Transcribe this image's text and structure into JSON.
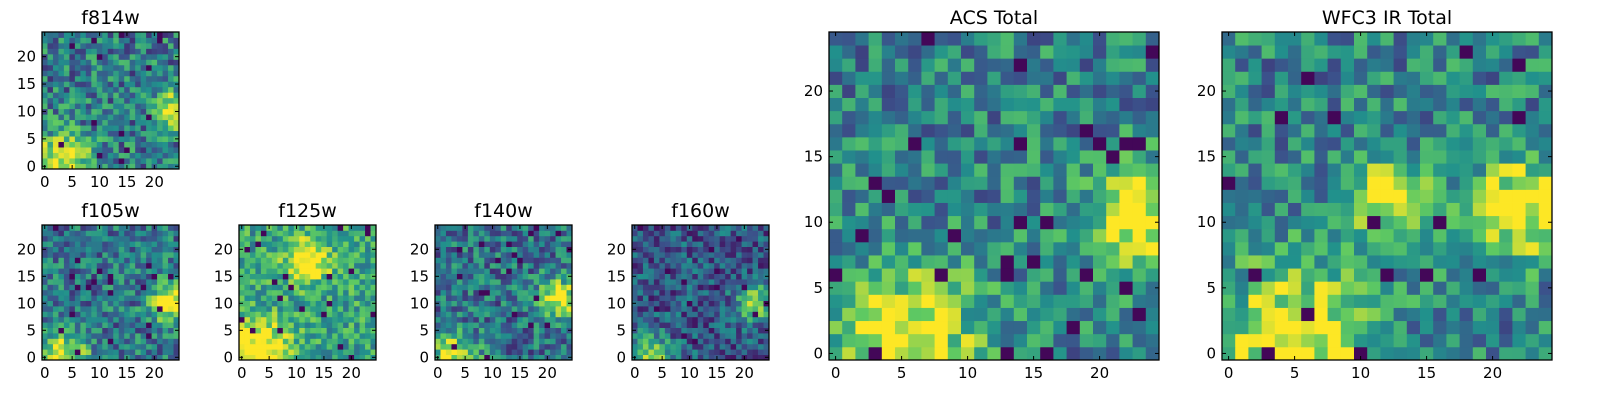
{
  "colors": {
    "colormap": [
      "#440154",
      "#3b528b",
      "#21918c",
      "#5ec962",
      "#fde725"
    ],
    "axis": "#000000",
    "background": "#ffffff"
  },
  "chart_data": [
    {
      "type": "heatmap",
      "title": "f814w",
      "grid_size": 25,
      "xlim": [
        0,
        24
      ],
      "ylim": [
        0,
        24
      ],
      "xticks": [
        "0",
        "5",
        "10",
        "15",
        "20"
      ],
      "yticks": [
        "0",
        "5",
        "10",
        "15",
        "20"
      ],
      "hotspots": [
        {
          "x": 3,
          "y": 0,
          "w": 6.0
        },
        {
          "x": 23,
          "y": 10,
          "w": 3.5
        }
      ],
      "noise": 0.55,
      "base": 0.42,
      "seed": 11
    },
    {
      "type": "heatmap",
      "title": "f105w",
      "grid_size": 25,
      "xlim": [
        0,
        24
      ],
      "ylim": [
        0,
        24
      ],
      "xticks": [
        "0",
        "5",
        "10",
        "15",
        "20"
      ],
      "yticks": [
        "0",
        "5",
        "10",
        "15",
        "20"
      ],
      "hotspots": [
        {
          "x": 3,
          "y": 0,
          "w": 5.0
        },
        {
          "x": 23,
          "y": 10,
          "w": 4.0
        }
      ],
      "noise": 0.5,
      "base": 0.4,
      "seed": 23
    },
    {
      "type": "heatmap",
      "title": "f125w",
      "grid_size": 25,
      "xlim": [
        0,
        24
      ],
      "ylim": [
        0,
        24
      ],
      "xticks": [
        "0",
        "5",
        "10",
        "15",
        "20"
      ],
      "yticks": [
        "0",
        "5",
        "10",
        "15",
        "20"
      ],
      "hotspots": [
        {
          "x": 3,
          "y": 1,
          "w": 6.0
        },
        {
          "x": 12,
          "y": 18,
          "w": 4.0
        }
      ],
      "noise": 0.45,
      "base": 0.58,
      "seed": 37
    },
    {
      "type": "heatmap",
      "title": "f140w",
      "grid_size": 25,
      "xlim": [
        0,
        24
      ],
      "ylim": [
        0,
        24
      ],
      "xticks": [
        "0",
        "5",
        "10",
        "15",
        "20"
      ],
      "yticks": [
        "0",
        "5",
        "10",
        "15",
        "20"
      ],
      "hotspots": [
        {
          "x": 3,
          "y": 0,
          "w": 4.5
        },
        {
          "x": 22,
          "y": 11,
          "w": 4.0
        }
      ],
      "noise": 0.5,
      "base": 0.38,
      "seed": 41
    },
    {
      "type": "heatmap",
      "title": "f160w",
      "grid_size": 25,
      "xlim": [
        0,
        24
      ],
      "ylim": [
        0,
        24
      ],
      "xticks": [
        "0",
        "5",
        "10",
        "15",
        "20"
      ],
      "yticks": [
        "0",
        "5",
        "10",
        "15",
        "20"
      ],
      "hotspots": [
        {
          "x": 3,
          "y": 0,
          "w": 4.0
        },
        {
          "x": 22,
          "y": 10,
          "w": 3.5
        }
      ],
      "noise": 0.45,
      "base": 0.28,
      "seed": 53
    },
    {
      "type": "heatmap",
      "title": "ACS Total",
      "grid_size": 25,
      "xlim": [
        0,
        24
      ],
      "ylim": [
        0,
        24
      ],
      "xticks": [
        "0",
        "5",
        "10",
        "15",
        "20"
      ],
      "yticks": [
        "0",
        "5",
        "10",
        "15",
        "20"
      ],
      "hotspots": [
        {
          "x": 5,
          "y": 1,
          "w": 6.0
        },
        {
          "x": 23,
          "y": 10,
          "w": 4.0
        }
      ],
      "noise": 0.5,
      "base": 0.45,
      "seed": 67
    },
    {
      "type": "heatmap",
      "title": "WFC3 IR Total",
      "grid_size": 25,
      "xlim": [
        0,
        24
      ],
      "ylim": [
        0,
        24
      ],
      "xticks": [
        "0",
        "5",
        "10",
        "15",
        "20"
      ],
      "yticks": [
        "0",
        "5",
        "10",
        "15",
        "20"
      ],
      "hotspots": [
        {
          "x": 5,
          "y": 1,
          "w": 6.0
        },
        {
          "x": 22,
          "y": 11,
          "w": 4.0
        },
        {
          "x": 12,
          "y": 12,
          "w": 3.0
        }
      ],
      "noise": 0.5,
      "base": 0.45,
      "seed": 79
    }
  ]
}
